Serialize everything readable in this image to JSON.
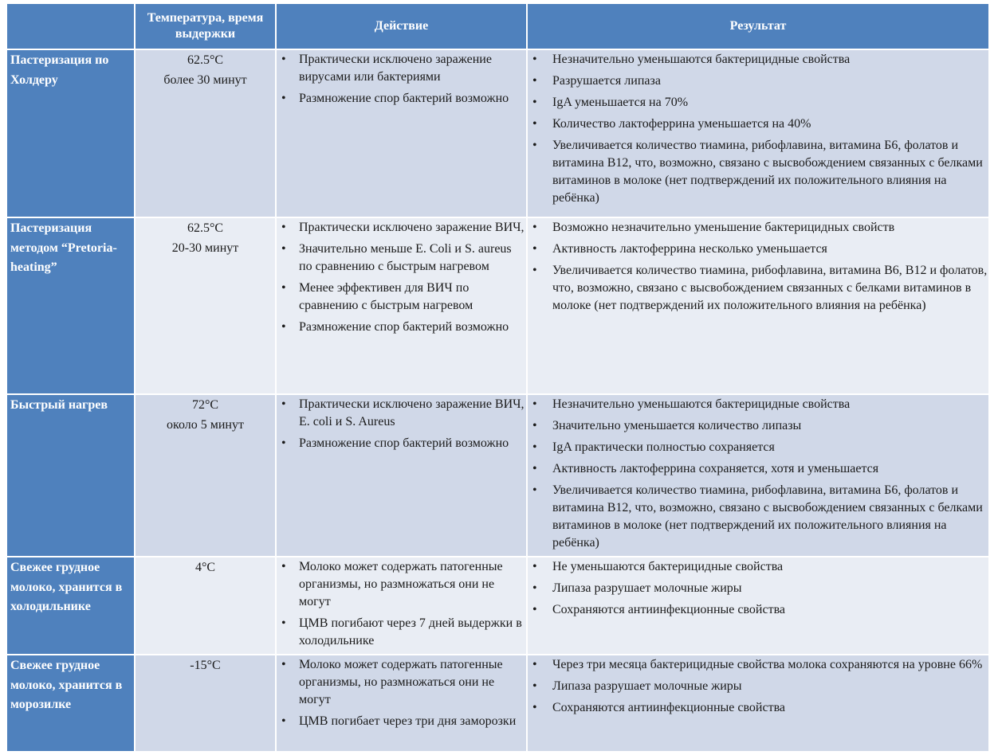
{
  "header": [
    "",
    "Температура, время выдержки",
    "Действие",
    "Результат"
  ],
  "colors": {
    "header": "#4f81bd",
    "row_dark": "#d0d8e8",
    "row_light": "#e9edf4"
  },
  "rows": [
    {
      "method": "Пастеризация по Холдеру",
      "temperature": [
        "62.5°C",
        "более 30 минут"
      ],
      "action": [
        "Практически исключено заражение вирусами или бактериями",
        "Размножение спор бактерий возможно"
      ],
      "result": [
        "Незначительно уменьшаются бактерицидные свойства",
        "Разрушается липаза",
        "IgA уменьшается на 70%",
        "Количество лактоферрина уменьшается на 40%",
        "Увеличивается количество тиамина, рибофлавина, витамина Б6, фолатов и витамина B12, что, возможно, связано с высвобождением связанных с белками витаминов в молоке (нет подтверждений их положительного влияния на ребёнка)"
      ]
    },
    {
      "method": "Пастеризация методом “Pretoria-heating”",
      "temperature": [
        "62.5°C",
        "20-30 минут"
      ],
      "action": [
        "Практически исключено заражение ВИЧ,",
        "Значительно меньше  E. Coli и  S. aureus по сравнению с быстрым нагревом",
        "Менее эффективен для ВИЧ  по сравнению с быстрым нагревом",
        "Размножение спор бактерий возможно"
      ],
      "result": [
        "Возможно незначительно уменьшение бактерицидных свойств",
        "Активность лактоферрина несколько уменьшается",
        "Увеличивается количество тиамина, рибофлавина, витамина B6, B12 и фолатов, что, возможно, связано с высвобождением связанных с белками витаминов в молоке (нет подтверждений их положительного влияния на ребёнка)"
      ]
    },
    {
      "method": "Быстрый нагрев",
      "temperature": [
        "72°C",
        "около 5 минут"
      ],
      "action": [
        "Практически исключено заражение ВИЧ, E. coli и S. Aureus",
        "Размножение спор бактерий возможно"
      ],
      "result": [
        "Незначительно уменьшаются бактерицидные свойства",
        "Значительно уменьшается количество липазы",
        "IgA практически полностью сохраняется",
        "Активность лактоферрина сохраняется, хотя и уменьшается",
        "Увеличивается количество тиамина, рибофлавина, витамина Б6, фолатов и витамина B12, что, возможно, связано с высвобождением связанных с белками витаминов в молоке (нет подтверждений их положительного влияния на ребёнка)"
      ]
    },
    {
      "method": "Свежее грудное молоко, хранится в холодильнике",
      "temperature": [
        "4°C"
      ],
      "action": [
        "Молоко может содержать патогенные организмы, но размножаться они не могут",
        "ЦМВ погибают через 7 дней выдержки в холодильнике"
      ],
      "result": [
        "Не уменьшаются бактерицидные свойства",
        "Липаза разрушает молочные жиры",
        "Сохраняются антиинфекционные свойства"
      ]
    },
    {
      "method": "Свежее грудное молоко, хранится в морозилке",
      "temperature": [
        "-15°C"
      ],
      "action": [
        "Молоко может содержать патогенные организмы, но размножаться они не могут",
        "ЦМВ погибает через три дня заморозки"
      ],
      "result": [
        "Через три месяца бактерицидные свойства молока сохраняются на уровне 66%",
        "Липаза разрушает молочные жиры",
        "Сохраняются антиинфекционные свойства"
      ]
    }
  ]
}
